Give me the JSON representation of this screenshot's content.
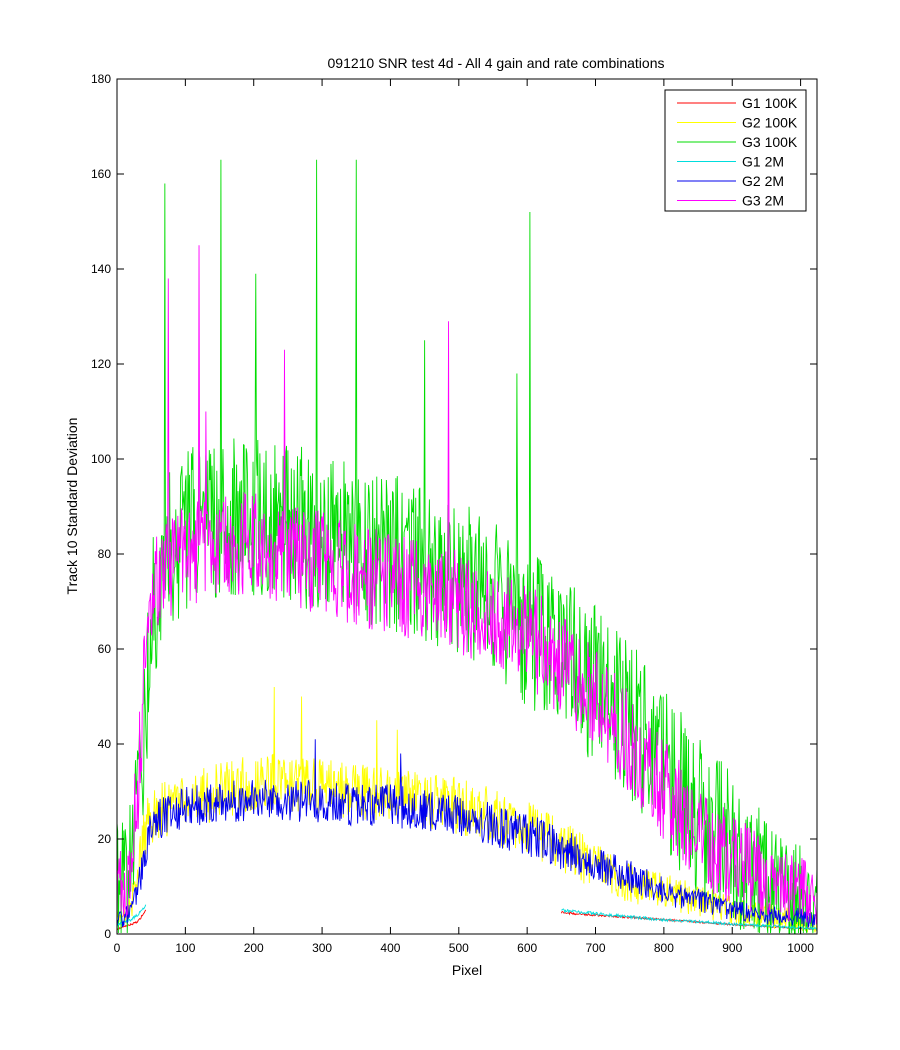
{
  "chart_data": {
    "type": "line",
    "title": "091210  SNR test 4d - All 4 gain and rate combinations",
    "xlabel": "Pixel",
    "ylabel": "Track 10 Standard Deviation",
    "xlim": [
      0,
      1024
    ],
    "ylim": [
      0,
      180
    ],
    "xticks": [
      "0",
      "100",
      "200",
      "300",
      "400",
      "500",
      "600",
      "700",
      "800",
      "900",
      "1000"
    ],
    "yticks": [
      "0",
      "20",
      "40",
      "60",
      "80",
      "100",
      "120",
      "140",
      "160",
      "180"
    ],
    "xtick_values": [
      0,
      100,
      200,
      300,
      400,
      500,
      600,
      700,
      800,
      900,
      1000
    ],
    "ytick_values": [
      0,
      20,
      40,
      60,
      80,
      100,
      120,
      140,
      160,
      180
    ],
    "grid": false,
    "legend_position": "top-right",
    "series": [
      {
        "name": "G1 100K",
        "color": "#ff0000",
        "segments": [
          {
            "x": [
              0,
              10,
              20,
              30,
              40,
              42
            ],
            "y": [
              1,
              1.5,
              2,
              2.5,
              4.5,
              5
            ]
          },
          {
            "x": [
              650,
              700,
              750,
              800,
              850,
              900,
              950,
              1000,
              1024
            ],
            "y": [
              4.5,
              4,
              3.5,
              3,
              2.5,
              2,
              1.6,
              1.2,
              1
            ]
          }
        ],
        "amplitude": 0.5,
        "spikes": []
      },
      {
        "name": "G2 100K",
        "color": "#ffff00",
        "segments": [
          {
            "x": [
              0,
              10,
              20,
              30,
              40,
              50,
              100,
              150,
              200,
              250,
              300,
              350,
              400,
              450,
              500,
              550,
              600,
              650,
              700,
              750,
              800,
              850,
              900,
              950,
              1000,
              1024
            ],
            "y": [
              3,
              4,
              6,
              12,
              22,
              25,
              28,
              30,
              32,
              32,
              31,
              30,
              29,
              28,
              27,
              25,
              22,
              18,
              14,
              11,
              9,
              7,
              5,
              4,
              3,
              2.5
            ]
          }
        ],
        "amplitude": 6,
        "spikes": [
          [
            230,
            52
          ],
          [
            270,
            50
          ],
          [
            380,
            45
          ],
          [
            410,
            43
          ]
        ]
      },
      {
        "name": "G3 100K",
        "color": "#00dd00",
        "segments": [
          {
            "x": [
              0,
              10,
              20,
              30,
              40,
              50,
              70,
              100,
              150,
              200,
              250,
              300,
              350,
              400,
              450,
              500,
              550,
              600,
              650,
              700,
              750,
              800,
              850,
              900,
              950,
              1000,
              1024
            ],
            "y": [
              12,
              11,
              15,
              25,
              45,
              65,
              80,
              85,
              88,
              88,
              86,
              85,
              83,
              80,
              77,
              75,
              70,
              65,
              60,
              52,
              45,
              35,
              25,
              17,
              12,
              8,
              6
            ]
          }
        ],
        "amplitude": 17,
        "spikes": [
          [
            70,
            158
          ],
          [
            152,
            163
          ],
          [
            203,
            139
          ],
          [
            292,
            163
          ],
          [
            350,
            163
          ],
          [
            604,
            152
          ],
          [
            585,
            118
          ],
          [
            450,
            125
          ]
        ]
      },
      {
        "name": "G1 2M",
        "color": "#00dddd",
        "segments": [
          {
            "x": [
              0,
              10,
              20,
              30,
              40,
              42
            ],
            "y": [
              2,
              2.5,
              3,
              4,
              5.5,
              6
            ]
          },
          {
            "x": [
              650,
              700,
              750,
              800,
              850,
              900,
              950,
              1000,
              1024
            ],
            "y": [
              5,
              4.3,
              3.6,
              3,
              2.6,
              2.1,
              1.7,
              1.3,
              1.1
            ]
          }
        ],
        "amplitude": 0.7,
        "spikes": []
      },
      {
        "name": "G2 2M",
        "color": "#0000ee",
        "segments": [
          {
            "x": [
              0,
              10,
              20,
              30,
              40,
              50,
              100,
              150,
              200,
              250,
              300,
              350,
              400,
              450,
              500,
              550,
              600,
              650,
              700,
              750,
              800,
              850,
              900,
              950,
              1000,
              1024
            ],
            "y": [
              3,
              3.5,
              5,
              9,
              17,
              23,
              27,
              28,
              28,
              28,
              28,
              27,
              27,
              26,
              25,
              23,
              21,
              18,
              15,
              12,
              9,
              7,
              5,
              4,
              3.5,
              3
            ]
          }
        ],
        "amplitude": 4.5,
        "spikes": [
          [
            290,
            41
          ],
          [
            415,
            38
          ]
        ]
      },
      {
        "name": "G3 2M",
        "color": "#ff00ff",
        "segments": [
          {
            "x": [
              0,
              10,
              20,
              30,
              40,
              50,
              70,
              100,
              150,
              200,
              250,
              300,
              350,
              400,
              450,
              500,
              550,
              600,
              650,
              700,
              750,
              800,
              850,
              900,
              950,
              1000,
              1024
            ],
            "y": [
              10,
              10,
              14,
              30,
              55,
              70,
              77,
              80,
              82,
              82,
              80,
              78,
              76,
              74,
              72,
              70,
              67,
              63,
              57,
              49,
              40,
              30,
              22,
              16,
              12,
              9,
              8
            ]
          }
        ],
        "amplitude": 11,
        "spikes": [
          [
            75,
            138
          ],
          [
            120,
            145
          ],
          [
            130,
            110
          ],
          [
            245,
            123
          ],
          [
            485,
            129
          ]
        ]
      }
    ]
  }
}
